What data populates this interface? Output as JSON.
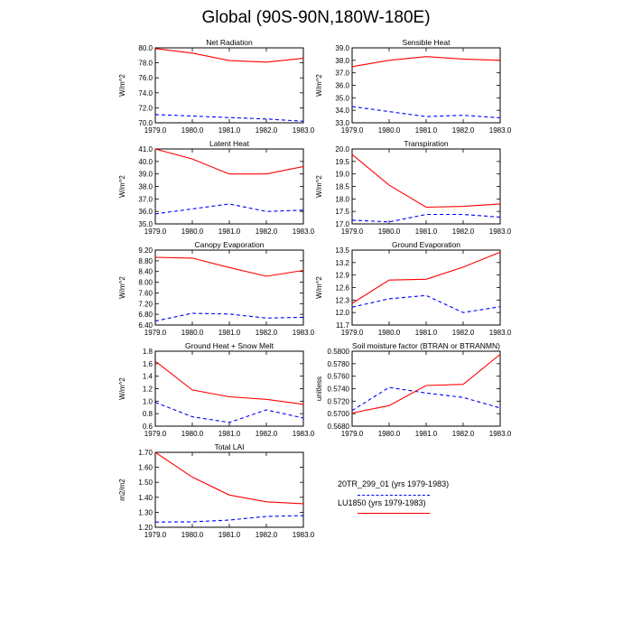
{
  "title": "Global (90S-90N,180W-180E)",
  "legend": [
    {
      "label": "20TR_299_01 (yrs 1979-1983)",
      "color": "#0000ff",
      "dash": true
    },
    {
      "label": "LU1850 (yrs 1979-1983)",
      "color": "#ff0000",
      "dash": false
    }
  ],
  "chart_data": [
    {
      "type": "line",
      "title": "Net Radiation",
      "ylabel": "W/m^2",
      "x": [
        1979,
        1980,
        1981,
        1982,
        1983
      ],
      "xticks": [
        "1979.0",
        "1980.0",
        "1981.0",
        "1982.0",
        "1983.0"
      ],
      "ylim": [
        70.0,
        80.0
      ],
      "yticks": [
        "70.0",
        "72.0",
        "74.0",
        "76.0",
        "78.0",
        "80.0"
      ],
      "series": [
        {
          "name": "20TR_299_01 (yrs 1979-1983)",
          "values": [
            71.1,
            70.9,
            70.7,
            70.5,
            70.2
          ]
        },
        {
          "name": "LU1850 (yrs 1979-1983)",
          "values": [
            79.9,
            79.3,
            78.3,
            78.1,
            78.6
          ]
        }
      ]
    },
    {
      "type": "line",
      "title": "Sensible Heat",
      "ylabel": "W/m^2",
      "x": [
        1979,
        1980,
        1981,
        1982,
        1983
      ],
      "xticks": [
        "1979.0",
        "1980.0",
        "1981.0",
        "1982.0",
        "1983.0"
      ],
      "ylim": [
        33.0,
        39.0
      ],
      "yticks": [
        "33.0",
        "34.0",
        "35.0",
        "36.0",
        "37.0",
        "38.0",
        "39.0"
      ],
      "series": [
        {
          "name": "20TR_299_01 (yrs 1979-1983)",
          "values": [
            34.3,
            33.9,
            33.5,
            33.6,
            33.4
          ]
        },
        {
          "name": "LU1850 (yrs 1979-1983)",
          "values": [
            37.5,
            38.0,
            38.3,
            38.1,
            38.0
          ]
        }
      ]
    },
    {
      "type": "line",
      "title": "Latent Heat",
      "ylabel": "W/m^2",
      "x": [
        1979,
        1980,
        1981,
        1982,
        1983
      ],
      "xticks": [
        "1979.0",
        "1980.0",
        "1981.0",
        "1982.0",
        "1983.0"
      ],
      "ylim": [
        35.0,
        41.0
      ],
      "yticks": [
        "35.0",
        "36.0",
        "37.0",
        "38.0",
        "39.0",
        "40.0",
        "41.0"
      ],
      "series": [
        {
          "name": "20TR_299_01 (yrs 1979-1983)",
          "values": [
            35.8,
            36.2,
            36.6,
            36.0,
            36.1
          ]
        },
        {
          "name": "LU1850 (yrs 1979-1983)",
          "values": [
            41.0,
            40.2,
            39.0,
            39.0,
            39.6
          ]
        }
      ]
    },
    {
      "type": "line",
      "title": "Transpiration",
      "ylabel": "W/m^2",
      "x": [
        1979,
        1980,
        1981,
        1982,
        1983
      ],
      "xticks": [
        "1979.0",
        "1980.0",
        "1981.0",
        "1982.0",
        "1983.0"
      ],
      "ylim": [
        17.0,
        20.0
      ],
      "yticks": [
        "17.0",
        "17.5",
        "18.0",
        "18.5",
        "19.0",
        "19.5",
        "20.0"
      ],
      "series": [
        {
          "name": "20TR_299_01 (yrs 1979-1983)",
          "values": [
            17.15,
            17.08,
            17.38,
            17.38,
            17.27
          ]
        },
        {
          "name": "LU1850 (yrs 1979-1983)",
          "values": [
            19.78,
            18.55,
            17.67,
            17.7,
            17.8
          ]
        }
      ]
    },
    {
      "type": "line",
      "title": "Canopy Evaporation",
      "ylabel": "W/m^2",
      "x": [
        1979,
        1980,
        1981,
        1982,
        1983
      ],
      "xticks": [
        "1979.0",
        "1980.0",
        "1981.0",
        "1982.0",
        "1983.0"
      ],
      "ylim": [
        6.4,
        9.2
      ],
      "yticks": [
        "6.40",
        "6.80",
        "7.20",
        "7.60",
        "8.00",
        "8.40",
        "8.80",
        "9.20"
      ],
      "series": [
        {
          "name": "20TR_299_01 (yrs 1979-1983)",
          "values": [
            6.55,
            6.84,
            6.81,
            6.66,
            6.69
          ]
        },
        {
          "name": "LU1850 (yrs 1979-1983)",
          "values": [
            8.93,
            8.9,
            8.55,
            8.22,
            8.44
          ]
        }
      ]
    },
    {
      "type": "line",
      "title": "Ground Evaporation",
      "ylabel": "W/m^2",
      "x": [
        1979,
        1980,
        1981,
        1982,
        1983
      ],
      "xticks": [
        "1979.0",
        "1980.0",
        "1981.0",
        "1982.0",
        "1983.0"
      ],
      "ylim": [
        11.7,
        13.5
      ],
      "yticks": [
        "11.7",
        "12.0",
        "12.3",
        "12.6",
        "12.9",
        "13.2",
        "13.5"
      ],
      "series": [
        {
          "name": "20TR_299_01 (yrs 1979-1983)",
          "values": [
            12.13,
            12.33,
            12.41,
            12.0,
            12.14
          ]
        },
        {
          "name": "LU1850 (yrs 1979-1983)",
          "values": [
            12.22,
            12.78,
            12.8,
            13.09,
            13.45
          ]
        }
      ]
    },
    {
      "type": "line",
      "title": "Ground Heat + Snow Melt",
      "ylabel": "W/m^2",
      "x": [
        1979,
        1980,
        1981,
        1982,
        1983
      ],
      "xticks": [
        "1979.0",
        "1980.0",
        "1981.0",
        "1982.0",
        "1983.0"
      ],
      "ylim": [
        0.6,
        1.8
      ],
      "yticks": [
        "0.6",
        "0.8",
        "1.0",
        "1.2",
        "1.4",
        "1.6",
        "1.8"
      ],
      "series": [
        {
          "name": "20TR_299_01 (yrs 1979-1983)",
          "values": [
            0.98,
            0.75,
            0.66,
            0.86,
            0.73
          ]
        },
        {
          "name": "LU1850 (yrs 1979-1983)",
          "values": [
            1.64,
            1.18,
            1.07,
            1.03,
            0.95
          ]
        }
      ]
    },
    {
      "type": "line",
      "title": "Soil moisture factor (BTRAN or BTRANMN)",
      "ylabel": "unitless",
      "x": [
        1979,
        1980,
        1981,
        1982,
        1983
      ],
      "xticks": [
        "1979.0",
        "1980.0",
        "1981.0",
        "1982.0",
        "1983.0"
      ],
      "ylim": [
        0.568,
        0.58
      ],
      "yticks": [
        "0.5680",
        "0.5700",
        "0.5720",
        "0.5740",
        "0.5760",
        "0.5780",
        "0.5800"
      ],
      "series": [
        {
          "name": "20TR_299_01 (yrs 1979-1983)",
          "values": [
            0.5705,
            0.5742,
            0.5733,
            0.5726,
            0.5709
          ]
        },
        {
          "name": "LU1850 (yrs 1979-1983)",
          "values": [
            0.5701,
            0.5713,
            0.5745,
            0.5747,
            0.5795
          ]
        }
      ]
    },
    {
      "type": "line",
      "title": "Total LAI",
      "ylabel": "m2/m2",
      "x": [
        1979,
        1980,
        1981,
        1982,
        1983
      ],
      "xticks": [
        "1979.0",
        "1980.0",
        "1981.0",
        "1982.0",
        "1983.0"
      ],
      "ylim": [
        1.2,
        1.7
      ],
      "yticks": [
        "1.20",
        "1.30",
        "1.40",
        "1.50",
        "1.60",
        "1.70"
      ],
      "series": [
        {
          "name": "20TR_299_01 (yrs 1979-1983)",
          "values": [
            1.235,
            1.236,
            1.248,
            1.272,
            1.278
          ]
        },
        {
          "name": "LU1850 (yrs 1979-1983)",
          "values": [
            1.7,
            1.535,
            1.415,
            1.37,
            1.357
          ]
        }
      ]
    }
  ]
}
